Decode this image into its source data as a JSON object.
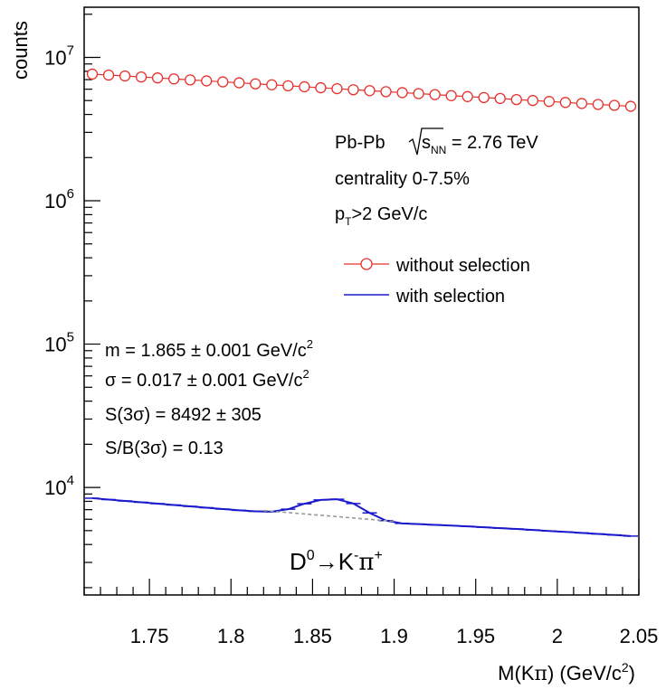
{
  "chart_data": {
    "type": "line",
    "ylabel": "counts",
    "xlabel_main": "M(K",
    "xlabel_pi": "π",
    "xlabel_unit": ") (GeV/c",
    "xlabel_sup": "2",
    "xlabel_close": ")",
    "xlim": [
      1.71,
      2.05
    ],
    "ylim_log10": [
      3.25,
      7.35
    ],
    "y_scale": "log",
    "x_ticks": [
      "1.75",
      "1.8",
      "1.85",
      "1.9",
      "1.95",
      "2",
      "2.05"
    ],
    "x_tick_values": [
      1.75,
      1.8,
      1.85,
      1.9,
      1.95,
      2.0,
      2.05
    ],
    "y_ticks": [
      {
        "base": "10",
        "exp": "4",
        "value": 10000
      },
      {
        "base": "10",
        "exp": "5",
        "value": 100000
      },
      {
        "base": "10",
        "exp": "6",
        "value": 1000000
      },
      {
        "base": "10",
        "exp": "7",
        "value": 10000000
      }
    ],
    "series": [
      {
        "name": "without selection",
        "color": "#e8312b",
        "marker": "open-circle",
        "x": [
          1.715,
          1.725,
          1.735,
          1.745,
          1.755,
          1.765,
          1.775,
          1.785,
          1.795,
          1.805,
          1.815,
          1.825,
          1.835,
          1.845,
          1.855,
          1.865,
          1.875,
          1.885,
          1.895,
          1.905,
          1.915,
          1.925,
          1.935,
          1.945,
          1.955,
          1.965,
          1.975,
          1.985,
          1.995,
          2.005,
          2.015,
          2.025,
          2.035,
          2.045
        ],
        "y": [
          7650000,
          7530000,
          7420000,
          7300000,
          7190000,
          7080000,
          6970000,
          6860000,
          6750000,
          6650000,
          6540000,
          6440000,
          6340000,
          6240000,
          6140000,
          6050000,
          5950000,
          5860000,
          5770000,
          5680000,
          5590000,
          5500000,
          5410000,
          5330000,
          5250000,
          5170000,
          5080000,
          5000000,
          4930000,
          4850000,
          4770000,
          4700000,
          4630000,
          4560000
        ]
      },
      {
        "name": "with selection",
        "color": "#1a1acc",
        "x": [
          1.715,
          1.725,
          1.735,
          1.745,
          1.755,
          1.765,
          1.775,
          1.785,
          1.795,
          1.805,
          1.815,
          1.825,
          1.835,
          1.845,
          1.855,
          1.865,
          1.875,
          1.885,
          1.895,
          1.905,
          1.915,
          1.925,
          1.935,
          1.945,
          1.955,
          1.965,
          1.975,
          1.985,
          1.995,
          2.005,
          2.015,
          2.025,
          2.035,
          2.045
        ],
        "y": [
          8420,
          8230,
          8050,
          7880,
          7710,
          7540,
          7380,
          7220,
          7070,
          6930,
          6810,
          6780,
          7050,
          7700,
          8180,
          8270,
          7730,
          6640,
          5870,
          5610,
          5550,
          5480,
          5420,
          5350,
          5280,
          5200,
          5130,
          5050,
          4970,
          4900,
          4820,
          4740,
          4660,
          4580
        ]
      },
      {
        "name": "",
        "style": "dashed",
        "color": "#999999",
        "x": [
          1.82,
          1.9
        ],
        "y": [
          6900,
          5800
        ]
      }
    ],
    "legend": {
      "placement": "top-right",
      "items": [
        "without selection",
        "with selection"
      ]
    },
    "annotations": {
      "collision_prefix": "Pb-Pb ",
      "collision_sqrt_s": "s",
      "collision_sub": "NN",
      "collision_suffix": " = 2.76 TeV",
      "centrality": "centrality 0-7.5%",
      "pt_p": "p",
      "pt_sub": "T",
      "pt_rest": ">2 GeV/c",
      "mass_text": "m = 1.865 ± 0.001 GeV/c",
      "mass_sup": "2",
      "sigma_text": "σ = 0.017 ± 0.001 GeV/c",
      "sigma_sup": "2",
      "signal_text": "S(3σ) = 8492 ± 305",
      "sb_text": "S/B(3σ) = 0.13",
      "decay_d": "D",
      "decay_d_sup": "0",
      "decay_arrow": "→",
      "decay_k": "K",
      "decay_k_sup": "-",
      "decay_pi": "π",
      "decay_pi_sup": "+"
    }
  }
}
